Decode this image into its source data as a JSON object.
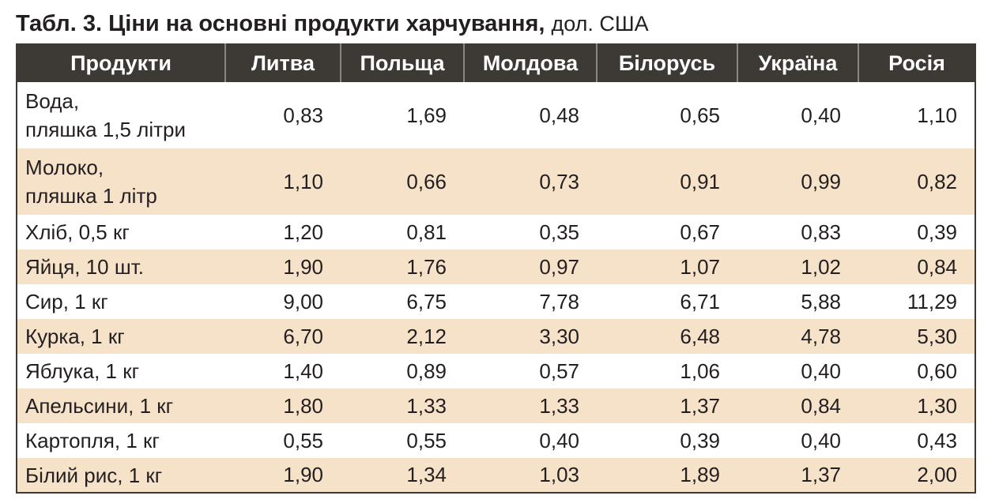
{
  "caption": {
    "title": "Табл. 3. Ціни на основні продукти харчування,",
    "unit": "дол. США"
  },
  "colors": {
    "header_bg": "#3d3935",
    "stripe_bg": "#f6e2c8"
  },
  "table": {
    "headers": [
      "Продукти",
      "Литва",
      "Польща",
      "Молдова",
      "Білорусь",
      "Україна",
      "Росія"
    ],
    "rows": [
      {
        "name": [
          "Вода,",
          "пляшка 1,5 літри"
        ],
        "values": [
          "0,83",
          "1,69",
          "0,48",
          "0,65",
          "0,40",
          "1,10"
        ]
      },
      {
        "name": [
          "Молоко,",
          "пляшка 1 літр"
        ],
        "values": [
          "1,10",
          "0,66",
          "0,73",
          "0,91",
          "0,99",
          "0,82"
        ]
      },
      {
        "name": [
          "Хліб, 0,5 кг"
        ],
        "values": [
          "1,20",
          "0,81",
          "0,35",
          "0,67",
          "0,83",
          "0,39"
        ]
      },
      {
        "name": [
          "Яйця, 10 шт."
        ],
        "values": [
          "1,90",
          "1,76",
          "0,97",
          "1,07",
          "1,02",
          "0,84"
        ]
      },
      {
        "name": [
          "Сир, 1 кг"
        ],
        "values": [
          "9,00",
          "6,75",
          "7,78",
          "6,71",
          "5,88",
          "11,29"
        ]
      },
      {
        "name": [
          "Курка, 1 кг"
        ],
        "values": [
          "6,70",
          "2,12",
          "3,30",
          "6,48",
          "4,78",
          "5,30"
        ]
      },
      {
        "name": [
          "Яблука, 1 кг"
        ],
        "values": [
          "1,40",
          "0,89",
          "0,57",
          "1,06",
          "0,40",
          "0,60"
        ]
      },
      {
        "name": [
          "Апельсини, 1 кг"
        ],
        "values": [
          "1,80",
          "1,33",
          "1,33",
          "1,37",
          "0,84",
          "1,30"
        ]
      },
      {
        "name": [
          "Картопля, 1 кг"
        ],
        "values": [
          "0,55",
          "0,55",
          "0,40",
          "0,39",
          "0,40",
          "0,43"
        ]
      },
      {
        "name": [
          "Білий рис, 1 кг"
        ],
        "values": [
          "1,90",
          "1,34",
          "1,03",
          "1,89",
          "1,37",
          "2,00"
        ]
      }
    ]
  }
}
